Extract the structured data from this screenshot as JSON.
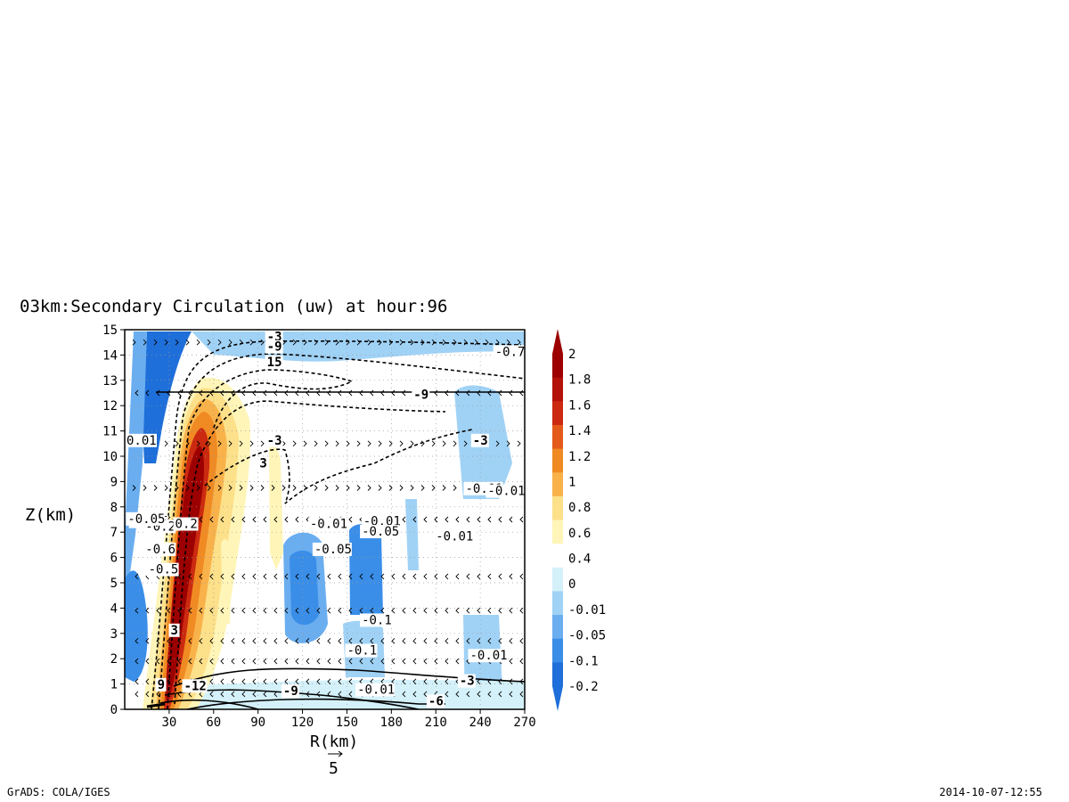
{
  "chart_data": {
    "type": "contour",
    "title": "03km:Secondary Circulation (uw) at hour:96",
    "xlabel": "R(km)",
    "ylabel": "Z(km)",
    "xlim": [
      0,
      270
    ],
    "ylim": [
      0,
      15
    ],
    "x_ticks": [
      "30",
      "60",
      "90",
      "120",
      "150",
      "180",
      "210",
      "240",
      "270"
    ],
    "y_ticks": [
      "0",
      "1",
      "2",
      "3",
      "4",
      "5",
      "6",
      "7",
      "8",
      "9",
      "10",
      "11",
      "12",
      "13",
      "14",
      "15"
    ],
    "grid": "dotted",
    "colorbar": {
      "labels": [
        "-0.2",
        "-0.1",
        "-0.05",
        "-0.01",
        "0",
        "0.4",
        "0.6",
        "0.8",
        "1",
        "1.2",
        "1.4",
        "1.6",
        "1.8",
        "2"
      ],
      "colors": [
        "#1e6fd9",
        "#3a8ee8",
        "#6aaef0",
        "#a0d2f6",
        "#d4f1fa",
        "#ffffff",
        "#fff5b8",
        "#fde08a",
        "#f9b24a",
        "#f08a22",
        "#e45a1a",
        "#cc2a10",
        "#b31208",
        "#9c0000"
      ]
    },
    "contour_labels": [
      "-3",
      "-9",
      "15",
      "-9",
      "-3",
      "3",
      "-3",
      "-0.01",
      "-0.01",
      "-0.05",
      "-0.01",
      "-0.05",
      "-0.05",
      "-0.01",
      "-0.1",
      "-0.1",
      "-0.01",
      "-3",
      "-9",
      "-0.01",
      "-6",
      "-12",
      "9",
      "-0.2",
      "-0.05",
      "0.2",
      "-0.5",
      "3",
      "-0.01",
      "-0.6",
      "0.01",
      "-0.7"
    ],
    "vector_reference": "5",
    "w_max_region": {
      "r_km": [
        30,
        55
      ],
      "z_km": [
        2,
        12.5
      ],
      "max": 2
    }
  },
  "footer": {
    "left": "GrADS: COLA/IGES",
    "right": "2014-10-07-12:55"
  }
}
